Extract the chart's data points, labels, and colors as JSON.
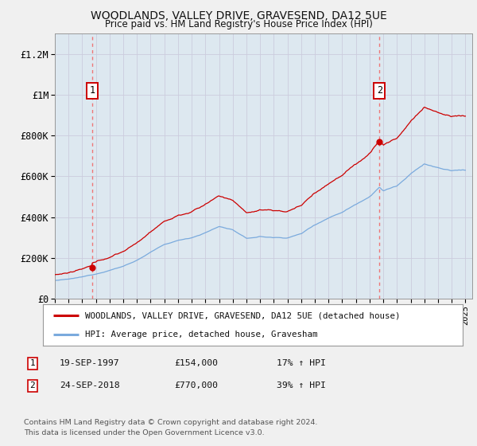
{
  "title": "WOODLANDS, VALLEY DRIVE, GRAVESEND, DA12 5UE",
  "subtitle": "Price paid vs. HM Land Registry's House Price Index (HPI)",
  "ylim": [
    0,
    1300000
  ],
  "yticks": [
    0,
    200000,
    400000,
    600000,
    800000,
    1000000,
    1200000
  ],
  "ytick_labels": [
    "£0",
    "£200K",
    "£400K",
    "£600K",
    "£800K",
    "£1M",
    "£1.2M"
  ],
  "sale1_date": "19-SEP-1997",
  "sale1_price": 154000,
  "sale1_label": "17% ↑ HPI",
  "sale2_date": "24-SEP-2018",
  "sale2_price": 770000,
  "sale2_label": "39% ↑ HPI",
  "sale1_x": 1997.72,
  "sale2_x": 2018.72,
  "line1_color": "#cc0000",
  "line2_color": "#7aaadd",
  "legend1_label": "WOODLANDS, VALLEY DRIVE, GRAVESEND, DA12 5UE (detached house)",
  "legend2_label": "HPI: Average price, detached house, Gravesham",
  "annotation1": "1",
  "annotation2": "2",
  "footer1": "Contains HM Land Registry data © Crown copyright and database right 2024.",
  "footer2": "This data is licensed under the Open Government Licence v3.0.",
  "xmin": 1995,
  "xmax": 2025.5,
  "grid_color": "#ccccdd",
  "bg_color": "#f0f0f0",
  "plot_bg_color": "#dde8f0",
  "dashed_color": "#ee7777",
  "marker_color": "#cc0000",
  "annotation_box_color": "#cc0000",
  "legend_border_color": "#999999",
  "spine_color": "#999999"
}
